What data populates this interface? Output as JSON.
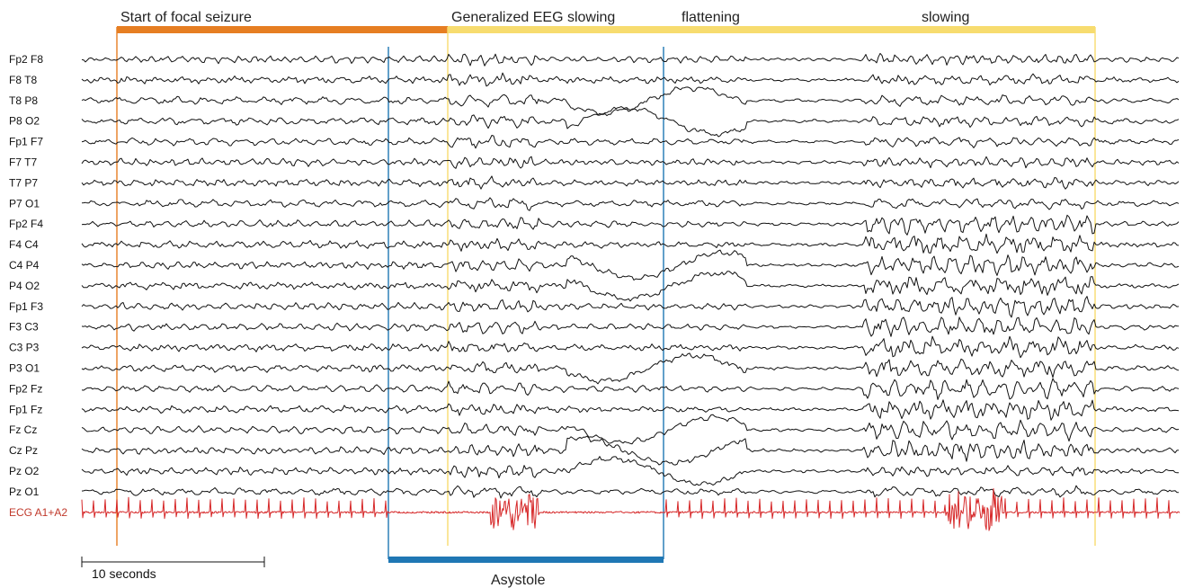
{
  "chart_data": {
    "type": "line",
    "title": "",
    "phases": [
      {
        "label": "Start of focal seizure",
        "color": "#e67e22"
      },
      {
        "label": "Generalized EEG slowing",
        "color": "#f7dc6f"
      },
      {
        "label": "flattening",
        "color": "#f7dc6f"
      },
      {
        "label": "slowing",
        "color": "#f7dc6f"
      }
    ],
    "asystole": {
      "label": "Asystole",
      "color": "#1f77b4"
    },
    "markers": [
      {
        "color": "#e67e22"
      },
      {
        "color": "#1f77b4"
      },
      {
        "color": "#f7dc6f"
      },
      {
        "color": "#1f77b4"
      },
      {
        "color": "#f7dc6f"
      }
    ],
    "channels": [
      "Fp2 F8",
      "F8 T8",
      "T8 P8",
      "P8 O2",
      "Fp1 F7",
      "F7 T7",
      "T7 P7",
      "P7 O1",
      "Fp2 F4",
      "F4 C4",
      "C4 P4",
      "P4 O2",
      "Fp1 F3",
      "F3 C3",
      "C3 P3",
      "P3 O1",
      "Fp2 Fz",
      "Fp1 Fz",
      "Fz Cz",
      "Cz Pz",
      "Pz O2",
      "Pz O1"
    ],
    "ecg_channel": {
      "label": "ECG A1+A2",
      "color": "#c0392b",
      "trace_color": "#d62728"
    },
    "scale_bar": {
      "label": "10 seconds",
      "seconds": 10
    }
  }
}
